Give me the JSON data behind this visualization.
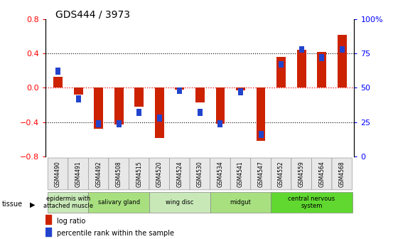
{
  "title": "GDS444 / 3973",
  "samples": [
    "GSM4490",
    "GSM4491",
    "GSM4492",
    "GSM4508",
    "GSM4515",
    "GSM4520",
    "GSM4524",
    "GSM4530",
    "GSM4534",
    "GSM4541",
    "GSM4547",
    "GSM4552",
    "GSM4559",
    "GSM4564",
    "GSM4568"
  ],
  "log_ratio": [
    0.13,
    -0.08,
    -0.48,
    -0.43,
    -0.22,
    -0.58,
    -0.02,
    -0.17,
    -0.42,
    -0.03,
    -0.62,
    0.36,
    0.44,
    0.42,
    0.62
  ],
  "percentile_pct": [
    62,
    42,
    24,
    24,
    32,
    28,
    48,
    32,
    24,
    47,
    16,
    67,
    78,
    72,
    78
  ],
  "tissue_groups": [
    {
      "label": "epidermis with\nattached muscle",
      "start": 0,
      "end": 2,
      "color": "#c8e8b8"
    },
    {
      "label": "salivary gland",
      "start": 2,
      "end": 5,
      "color": "#a8e080"
    },
    {
      "label": "wing disc",
      "start": 5,
      "end": 8,
      "color": "#c8e8b8"
    },
    {
      "label": "midgut",
      "start": 8,
      "end": 11,
      "color": "#a8e080"
    },
    {
      "label": "central nervous\nsystem",
      "start": 11,
      "end": 15,
      "color": "#60d830"
    }
  ],
  "bar_color_red": "#cc2200",
  "bar_color_blue": "#2244cc",
  "ylim": [
    -0.8,
    0.8
  ],
  "yticks": [
    -0.8,
    -0.4,
    0.0,
    0.4,
    0.8
  ],
  "right_ytick_pcts": [
    0,
    25,
    50,
    75,
    100
  ],
  "bar_width": 0.45,
  "blue_sq_size": 0.08
}
